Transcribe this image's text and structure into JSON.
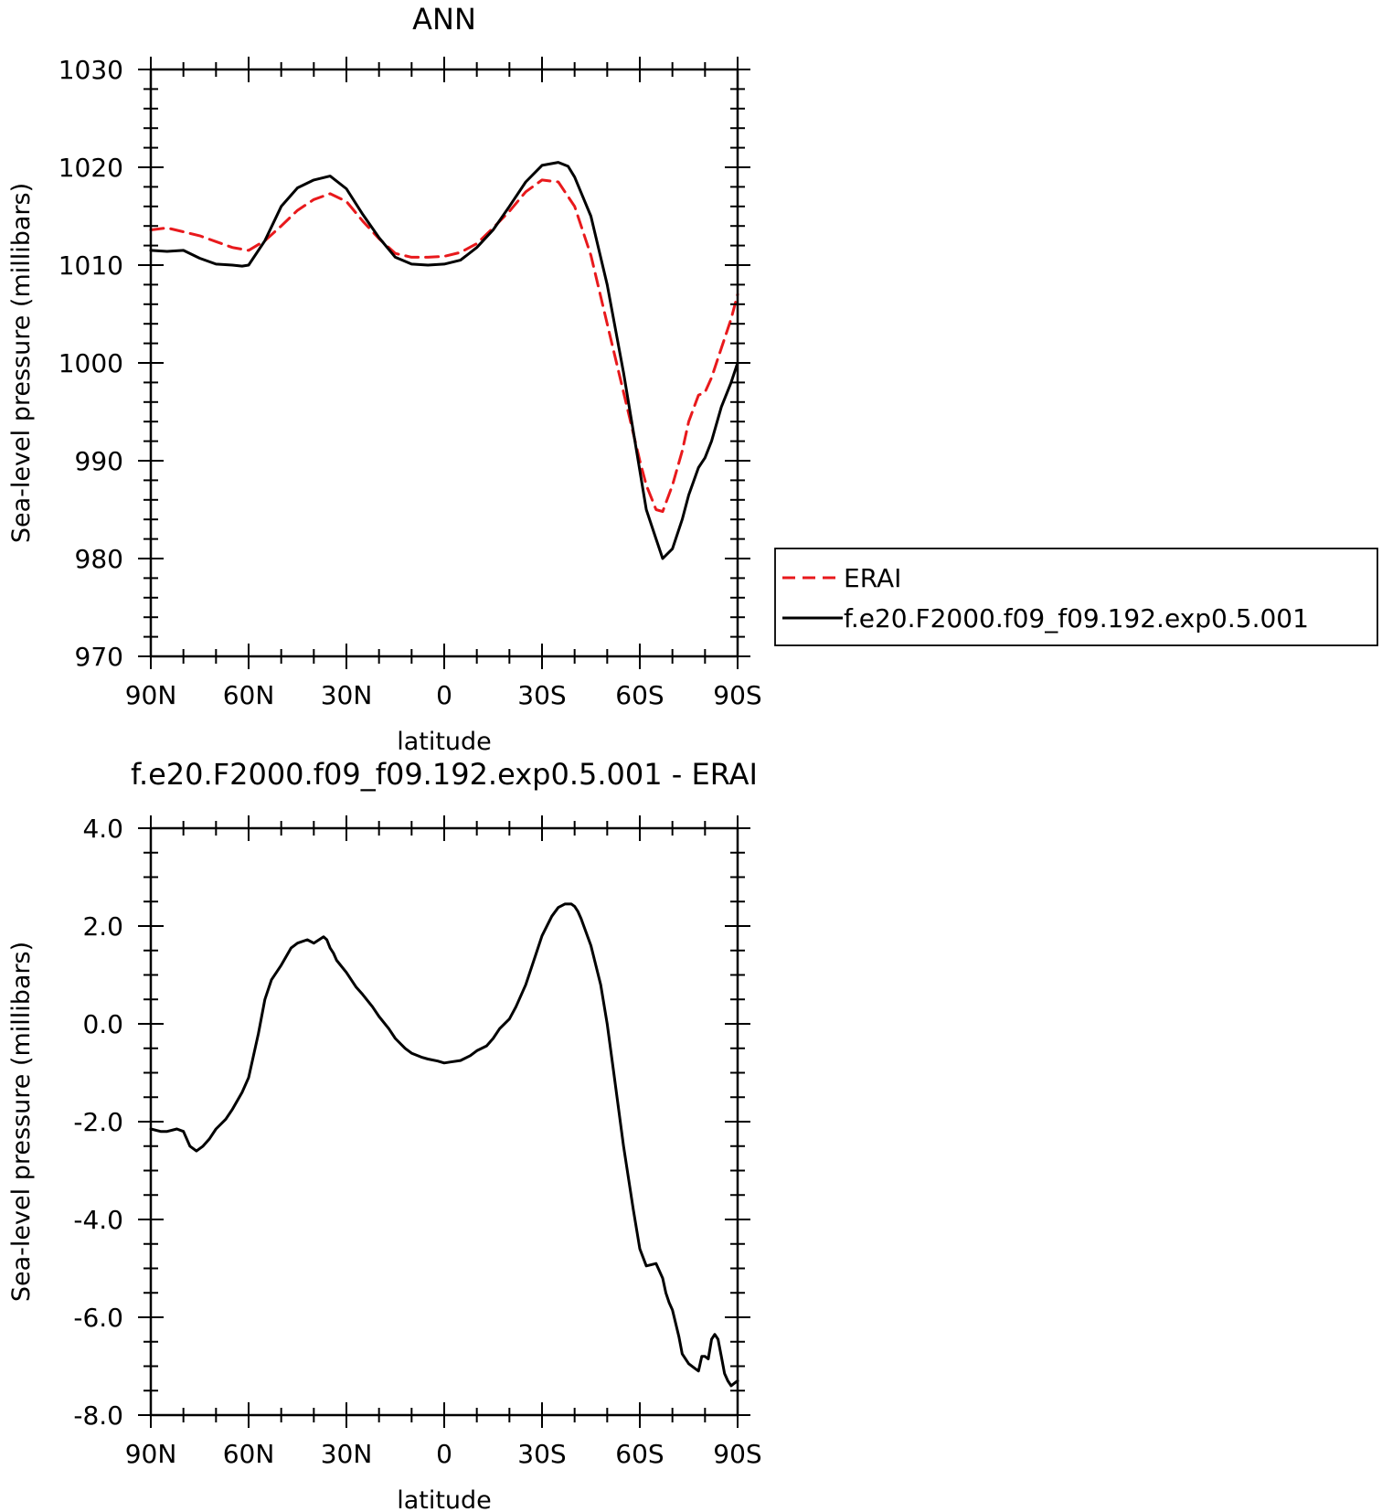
{
  "chart_data": [
    {
      "type": "line",
      "title": "ANN",
      "xlabel": "latitude",
      "ylabel": "Sea-level pressure (millibars)",
      "xlim": [
        90,
        -90
      ],
      "ylim": [
        970,
        1030
      ],
      "x_ticks": [
        {
          "value": 90,
          "label": "90N"
        },
        {
          "value": 60,
          "label": "60N"
        },
        {
          "value": 30,
          "label": "30N"
        },
        {
          "value": 0,
          "label": "0"
        },
        {
          "value": -30,
          "label": "30S"
        },
        {
          "value": -60,
          "label": "60S"
        },
        {
          "value": -90,
          "label": "90S"
        }
      ],
      "y_ticks": [
        {
          "value": 1030,
          "label": "1030"
        },
        {
          "value": 1020,
          "label": "1020"
        },
        {
          "value": 1010,
          "label": "1010"
        },
        {
          "value": 1000,
          "label": "1000"
        },
        {
          "value": 990,
          "label": "990"
        },
        {
          "value": 980,
          "label": "980"
        },
        {
          "value": 970,
          "label": "970"
        }
      ],
      "grid": false,
      "legend_position": "right",
      "series": [
        {
          "name": "ERAI",
          "color": "#e8191c",
          "dash": "dashed",
          "x": [
            90,
            85,
            80,
            75,
            70,
            65,
            60,
            55,
            50,
            45,
            40,
            35,
            30,
            25,
            20,
            15,
            10,
            5,
            0,
            -5,
            -10,
            -15,
            -20,
            -25,
            -30,
            -35,
            -40,
            -45,
            -50,
            -55,
            -60,
            -62,
            -65,
            -67,
            -70,
            -73,
            -75,
            -78,
            -80,
            -82,
            -85,
            -88,
            -90
          ],
          "y": [
            1013.6,
            1013.8,
            1013.4,
            1013.0,
            1012.4,
            1011.8,
            1011.5,
            1012.5,
            1014.0,
            1015.6,
            1016.7,
            1017.3,
            1016.5,
            1014.5,
            1012.7,
            1011.2,
            1010.8,
            1010.8,
            1010.9,
            1011.3,
            1012.2,
            1013.8,
            1015.5,
            1017.5,
            1018.7,
            1018.5,
            1016.0,
            1011.0,
            1004.0,
            997.0,
            990.0,
            987.5,
            985.0,
            984.8,
            987.5,
            991.0,
            994.0,
            996.7,
            997.0,
            998.5,
            1001.5,
            1004.5,
            1007.0
          ]
        },
        {
          "name": "f.e20.F2000.f09_f09.192.exp0.5.001",
          "color": "#000000",
          "dash": "solid",
          "x": [
            90,
            85,
            80,
            75,
            70,
            65,
            62,
            60,
            55,
            50,
            45,
            40,
            35,
            30,
            25,
            20,
            15,
            10,
            5,
            0,
            -5,
            -10,
            -15,
            -20,
            -25,
            -30,
            -35,
            -38,
            -40,
            -45,
            -50,
            -55,
            -60,
            -62,
            -65,
            -67,
            -70,
            -73,
            -75,
            -78,
            -80,
            -82,
            -85,
            -88,
            -90
          ],
          "y": [
            1011.5,
            1011.4,
            1011.5,
            1010.7,
            1010.1,
            1010.0,
            1009.9,
            1010.0,
            1012.5,
            1016.0,
            1017.9,
            1018.7,
            1019.1,
            1017.8,
            1015.2,
            1012.8,
            1010.8,
            1010.1,
            1010.0,
            1010.1,
            1010.5,
            1011.8,
            1013.6,
            1016.0,
            1018.5,
            1020.2,
            1020.5,
            1020.1,
            1019.0,
            1015.0,
            1008.0,
            999.0,
            989.0,
            985.0,
            982.0,
            980.0,
            981.0,
            984.0,
            986.5,
            989.3,
            990.3,
            992.0,
            995.5,
            998.0,
            1000.0
          ]
        }
      ]
    },
    {
      "type": "line",
      "title": "f.e20.F2000.f09_f09.192.exp0.5.001 - ERAI",
      "xlabel": "latitude",
      "ylabel": "Sea-level pressure (millibars)",
      "xlim": [
        90,
        -90
      ],
      "ylim": [
        -8,
        4
      ],
      "x_ticks": [
        {
          "value": 90,
          "label": "90N"
        },
        {
          "value": 60,
          "label": "60N"
        },
        {
          "value": 30,
          "label": "30N"
        },
        {
          "value": 0,
          "label": "0"
        },
        {
          "value": -30,
          "label": "30S"
        },
        {
          "value": -60,
          "label": "60S"
        },
        {
          "value": -90,
          "label": "90S"
        }
      ],
      "y_ticks": [
        {
          "value": 4,
          "label": "4.0"
        },
        {
          "value": 2,
          "label": "2.0"
        },
        {
          "value": 0,
          "label": "0.0"
        },
        {
          "value": -2,
          "label": "-2.0"
        },
        {
          "value": -4,
          "label": "-4.0"
        },
        {
          "value": -6,
          "label": "-6.0"
        },
        {
          "value": -8,
          "label": "-8.0"
        }
      ],
      "grid": false,
      "series": [
        {
          "color": "#000000",
          "dash": "solid",
          "x": [
            90,
            87,
            85,
            82,
            80,
            78,
            76,
            74,
            72,
            70,
            67,
            65,
            62,
            60,
            57,
            55,
            53,
            50,
            47,
            45,
            42,
            40,
            37,
            36,
            35,
            34,
            33,
            30,
            27,
            25,
            22,
            20,
            17,
            15,
            12,
            10,
            7,
            5,
            2,
            0,
            -2,
            -5,
            -8,
            -10,
            -13,
            -15,
            -17,
            -20,
            -22,
            -25,
            -28,
            -30,
            -33,
            -35,
            -37,
            -39,
            -40,
            -41,
            -42,
            -45,
            -48,
            -50,
            -52,
            -55,
            -58,
            -60,
            -62,
            -65,
            -67,
            -68,
            -69,
            -70,
            -72,
            -73,
            -75,
            -77,
            -78,
            -79,
            -80,
            -81,
            -82,
            -83,
            -84,
            -85,
            -86,
            -87,
            -88,
            -89,
            -90
          ],
          "y": [
            -2.15,
            -2.2,
            -2.2,
            -2.15,
            -2.2,
            -2.5,
            -2.6,
            -2.5,
            -2.35,
            -2.15,
            -1.95,
            -1.75,
            -1.4,
            -1.1,
            -0.2,
            0.5,
            0.9,
            1.2,
            1.55,
            1.65,
            1.72,
            1.65,
            1.78,
            1.72,
            1.55,
            1.45,
            1.3,
            1.05,
            0.75,
            0.6,
            0.35,
            0.15,
            -0.1,
            -0.3,
            -0.5,
            -0.6,
            -0.68,
            -0.72,
            -0.76,
            -0.8,
            -0.78,
            -0.75,
            -0.65,
            -0.55,
            -0.45,
            -0.3,
            -0.1,
            0.1,
            0.35,
            0.8,
            1.4,
            1.8,
            2.2,
            2.38,
            2.45,
            2.45,
            2.4,
            2.3,
            2.15,
            1.6,
            0.8,
            0.0,
            -1.0,
            -2.5,
            -3.8,
            -4.6,
            -4.95,
            -4.9,
            -5.2,
            -5.5,
            -5.7,
            -5.85,
            -6.4,
            -6.75,
            -6.95,
            -7.05,
            -7.1,
            -6.8,
            -6.8,
            -6.85,
            -6.45,
            -6.35,
            -6.45,
            -6.8,
            -7.15,
            -7.3,
            -7.4,
            -7.35,
            -7.3
          ]
        }
      ]
    }
  ]
}
